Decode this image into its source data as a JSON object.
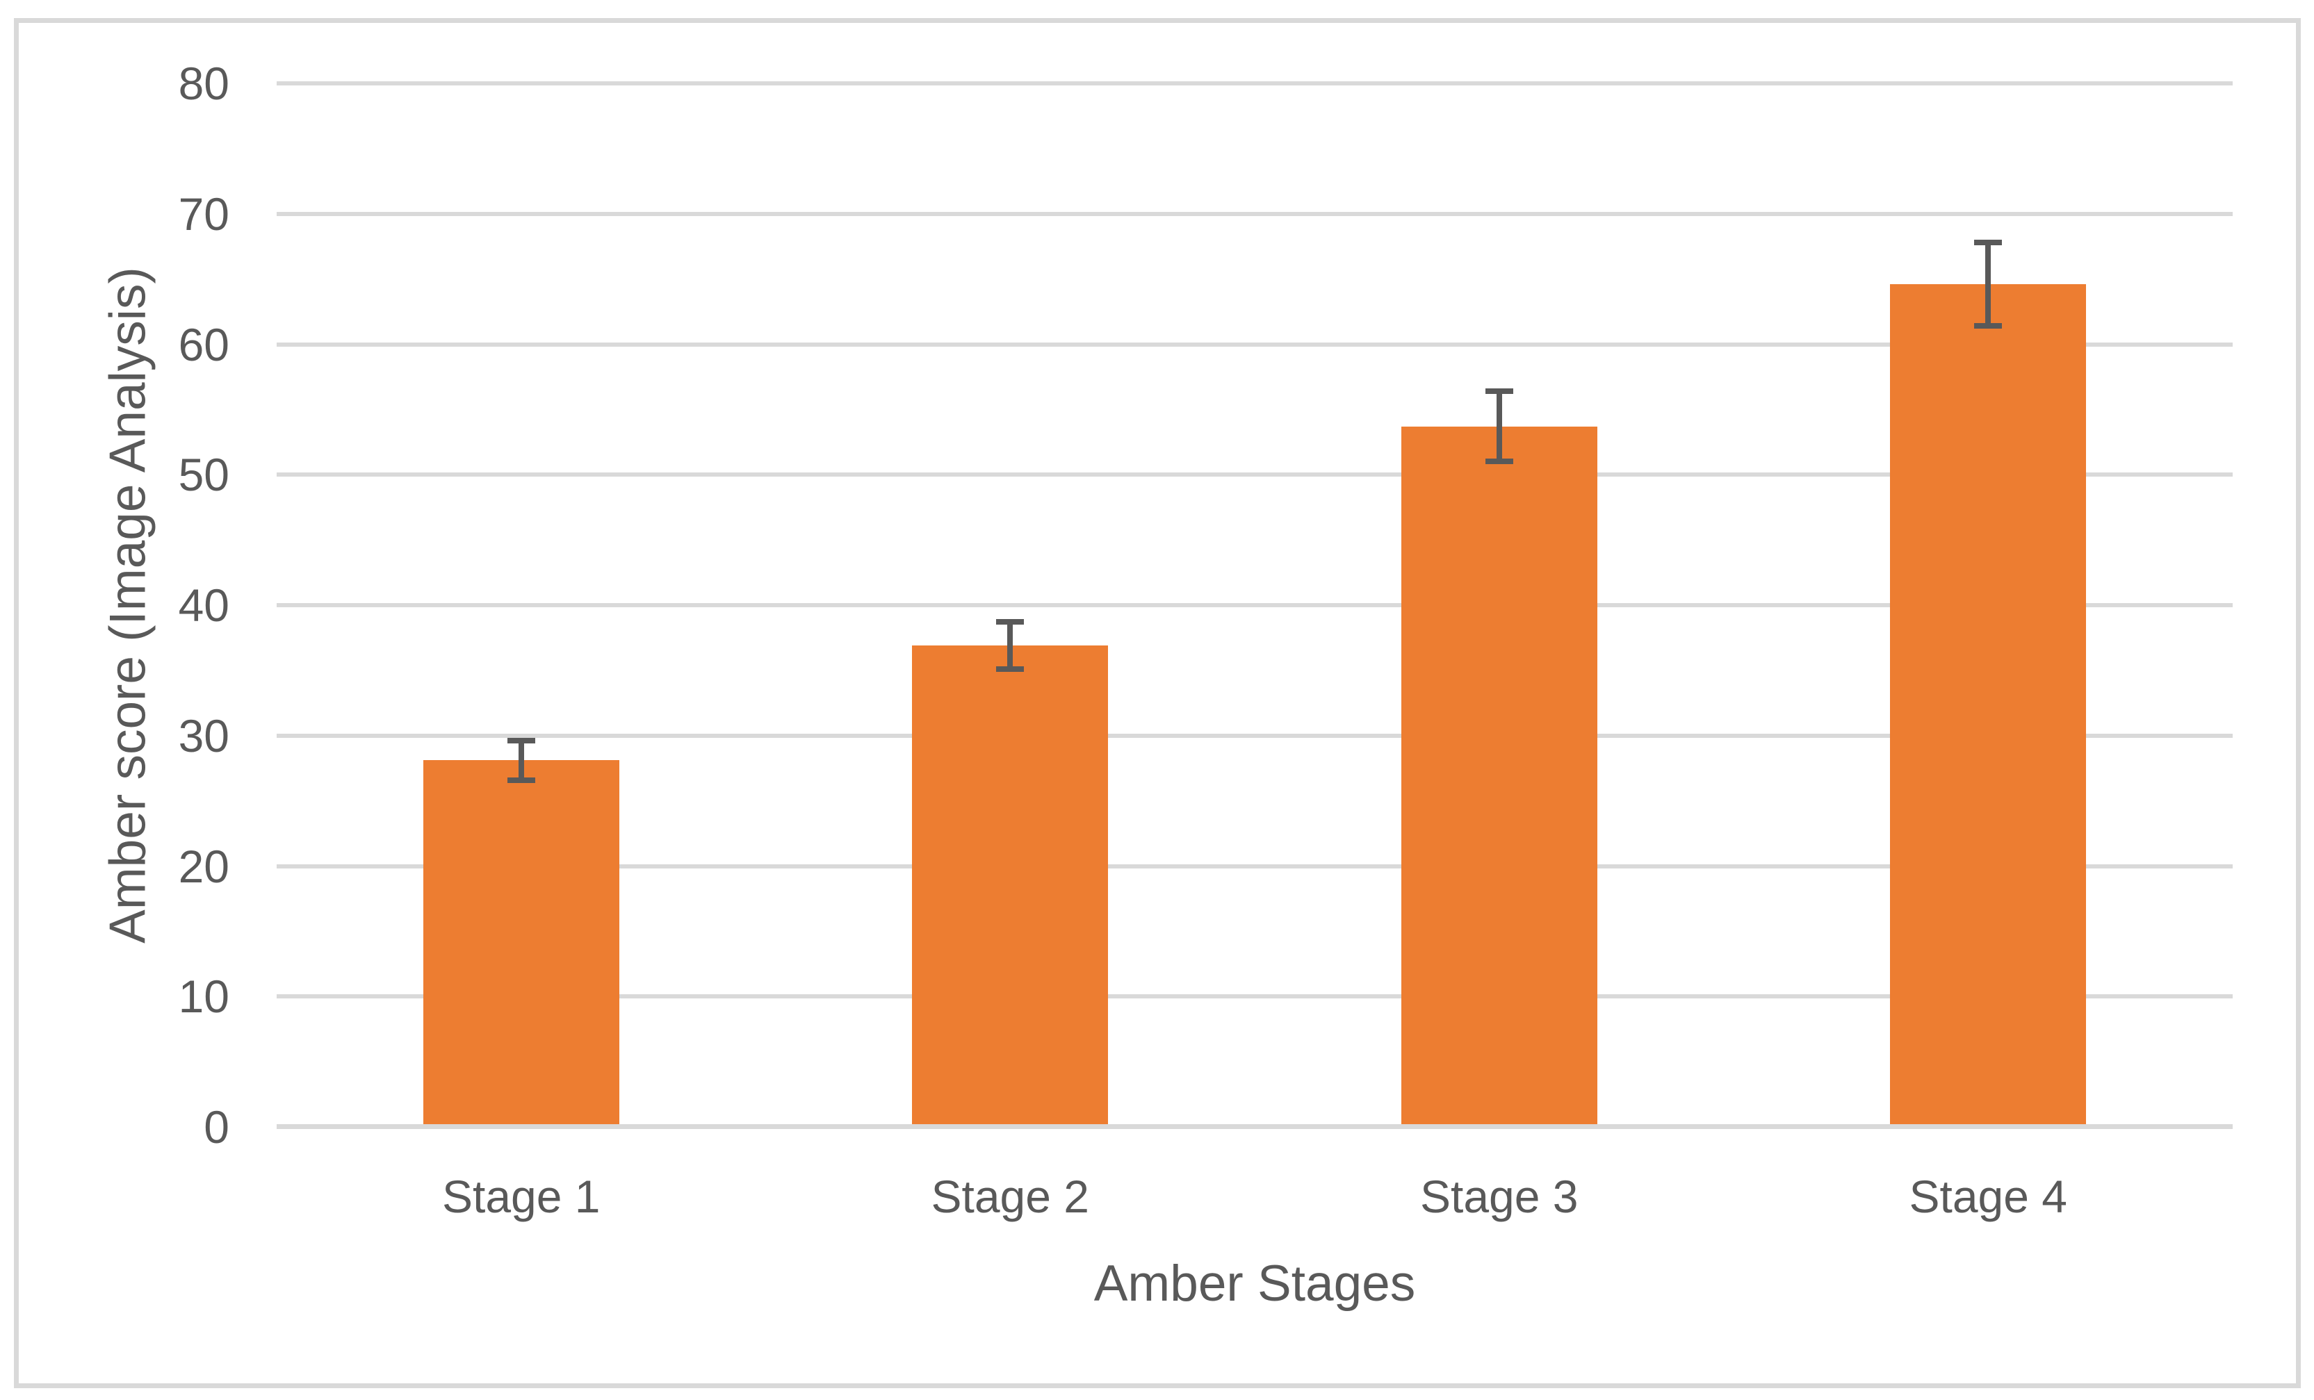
{
  "chart_data": {
    "type": "bar",
    "categories": [
      "Stage 1",
      "Stage 2",
      "Stage 3",
      "Stage 4"
    ],
    "values": [
      28.1,
      36.9,
      53.7,
      64.6
    ],
    "error_bars": [
      1.5,
      1.8,
      2.7,
      3.2
    ],
    "xlabel": "Amber Stages",
    "ylabel": "Amber score (Image Analysis)",
    "ylim": [
      0,
      80
    ],
    "yticks": [
      0,
      10,
      20,
      30,
      40,
      50,
      60,
      70,
      80
    ],
    "grid": "horizontal",
    "legend": "none",
    "colors": {
      "bar": "#ED7D31",
      "error_bar": "#595959",
      "gridline": "#D9D9D9",
      "axis_line": "#D9D9D9",
      "text": "#595959",
      "chart_border": "#D9D9D9",
      "background": "#FFFFFF"
    }
  }
}
